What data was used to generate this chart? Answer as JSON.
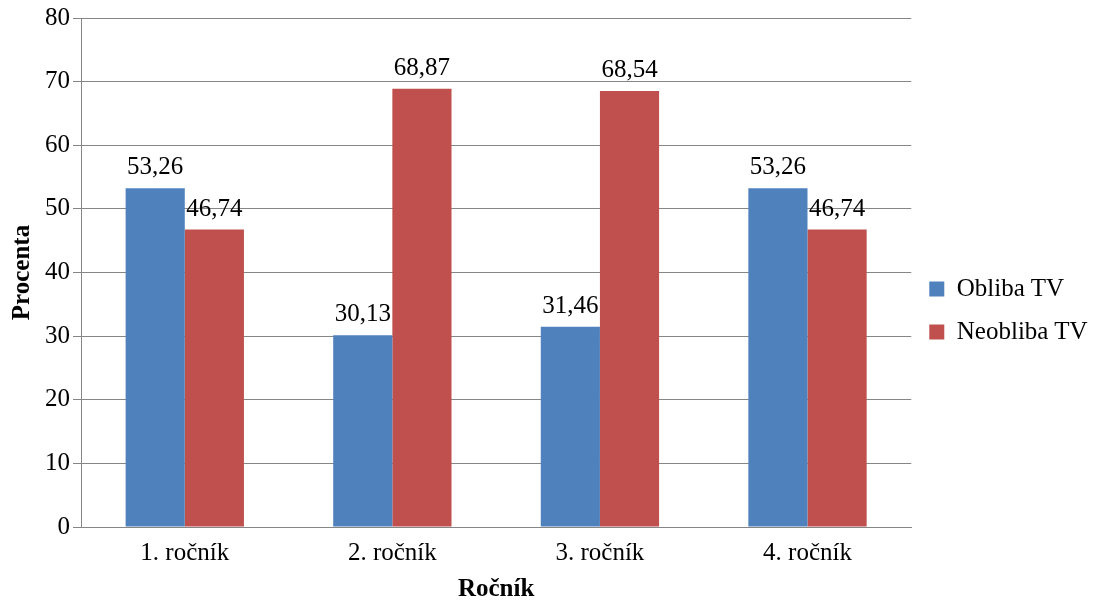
{
  "chart_data": {
    "type": "bar",
    "xlabel": "Ročník",
    "ylabel": "Procenta",
    "categories": [
      "1. ročník",
      "2. ročník",
      "3. ročník",
      "4. ročník"
    ],
    "series": [
      {
        "name": "Obliba TV",
        "color": "#4f81bd",
        "values": [
          53.26,
          30.13,
          31.46,
          53.26
        ],
        "value_labels": [
          "53,26",
          "30,13",
          "31,46",
          "53,26"
        ]
      },
      {
        "name": "Neobliba TV",
        "color": "#c0504d",
        "values": [
          46.74,
          68.87,
          68.54,
          46.74
        ],
        "value_labels": [
          "46,74",
          "68,87",
          "68,54",
          "46,74"
        ]
      }
    ],
    "ylim": [
      0,
      80
    ],
    "yticks": [
      0,
      10,
      20,
      30,
      40,
      50,
      60,
      70,
      80
    ],
    "grid": "y",
    "legend": "right"
  }
}
